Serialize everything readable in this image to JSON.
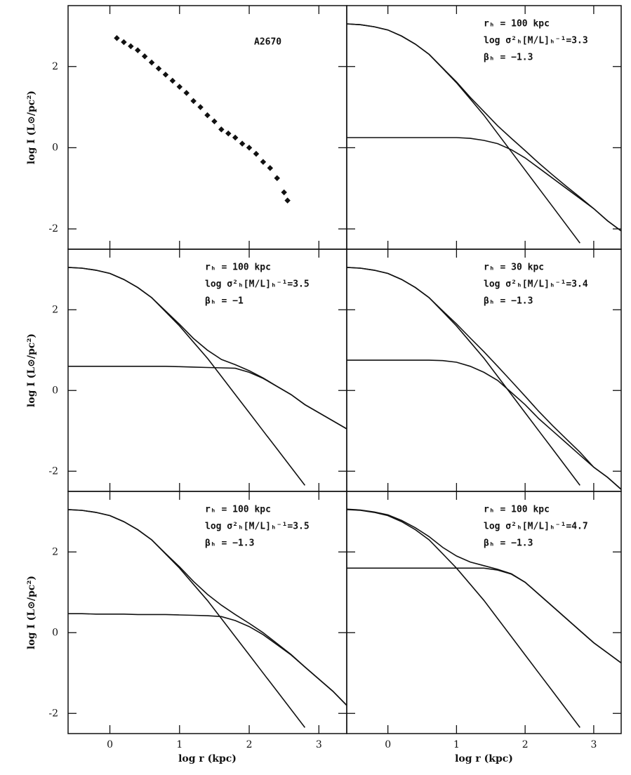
{
  "chart_data": [
    {
      "type": "scatter",
      "ylabel": "log I (L⊙/pc²)",
      "annotations": [
        "A2670"
      ],
      "x": [
        0.1,
        0.2,
        0.3,
        0.4,
        0.5,
        0.6,
        0.7,
        0.8,
        0.9,
        1.0,
        1.1,
        1.2,
        1.3,
        1.4,
        1.5,
        1.6,
        1.7,
        1.8,
        1.9,
        2.0,
        2.1,
        2.2,
        2.3,
        2.4,
        2.5,
        2.55
      ],
      "values": [
        2.7,
        2.6,
        2.5,
        2.4,
        2.25,
        2.1,
        1.95,
        1.8,
        1.65,
        1.5,
        1.35,
        1.15,
        1.0,
        0.8,
        0.65,
        0.45,
        0.35,
        0.25,
        0.1,
        0.0,
        -0.15,
        -0.35,
        -0.5,
        -0.75,
        -1.1,
        -1.3
      ],
      "color": "#111",
      "xlim": [
        -0.6,
        3.4
      ],
      "ylim": [
        -2.5,
        3.5
      ],
      "xticks": [
        0,
        1,
        2,
        3
      ],
      "yticks": [
        -2,
        0,
        2
      ]
    },
    {
      "type": "line",
      "annotations": [
        "rₕ = 100 kpc",
        "log σ²ₕ[M/L]ₕ⁻¹=3.3",
        "βₕ = −1.3"
      ],
      "x": [
        -0.6,
        -0.4,
        -0.2,
        0,
        0.2,
        0.4,
        0.6,
        0.8,
        1.0,
        1.2,
        1.4,
        1.6,
        1.8,
        2.0,
        2.2,
        2.4,
        2.6,
        2.8,
        3.0,
        3.2,
        3.4
      ],
      "series": [
        {
          "color": "#111",
          "values": [
            3.05,
            3.03,
            2.98,
            2.9,
            2.75,
            2.55,
            2.3,
            1.95,
            1.6,
            1.2,
            0.8,
            0.35,
            -0.1,
            -0.55,
            -1.0,
            -1.45,
            -1.9,
            -2.35,
            null,
            null,
            null
          ]
        },
        {
          "color": "#111",
          "values": [
            0.25,
            0.25,
            0.25,
            0.25,
            0.25,
            0.25,
            0.25,
            0.25,
            0.25,
            0.23,
            0.18,
            0.1,
            -0.05,
            -0.25,
            -0.5,
            -0.75,
            -1.0,
            -1.25,
            -1.5,
            -1.8,
            -2.05
          ]
        },
        {
          "color": "#111",
          "values": [
            3.05,
            3.03,
            2.98,
            2.9,
            2.75,
            2.55,
            2.3,
            1.96,
            1.62,
            1.24,
            0.89,
            0.54,
            0.23,
            -0.07,
            -0.38,
            -0.67,
            -0.95,
            -1.22,
            -1.5,
            -1.8,
            -2.05
          ]
        }
      ],
      "xlim": [
        -0.6,
        3.4
      ],
      "ylim": [
        -2.5,
        3.5
      ],
      "xticks": [
        0,
        1,
        2,
        3
      ],
      "yticks": [
        -2,
        0,
        2
      ]
    },
    {
      "type": "line",
      "ylabel": "log I (L⊙/pc²)",
      "annotations": [
        "rₕ = 100 kpc",
        "log σ²ₕ[M/L]ₕ⁻¹=3.5",
        "βₕ = −1"
      ],
      "x": [
        -0.6,
        -0.4,
        -0.2,
        0,
        0.2,
        0.4,
        0.6,
        0.8,
        1.0,
        1.2,
        1.4,
        1.6,
        1.8,
        2.0,
        2.2,
        2.4,
        2.6,
        2.8,
        3.0,
        3.2,
        3.4
      ],
      "series": [
        {
          "color": "#111",
          "values": [
            3.05,
            3.03,
            2.98,
            2.9,
            2.75,
            2.55,
            2.3,
            1.95,
            1.6,
            1.2,
            0.8,
            0.35,
            -0.1,
            -0.55,
            -1.0,
            -1.45,
            -1.9,
            -2.35,
            null,
            null,
            null
          ]
        },
        {
          "color": "#111",
          "values": [
            0.6,
            0.6,
            0.6,
            0.6,
            0.6,
            0.6,
            0.6,
            0.6,
            0.59,
            0.58,
            0.57,
            0.56,
            0.55,
            0.45,
            0.3,
            0.1,
            -0.1,
            -0.35,
            -0.55,
            -0.75,
            -0.95
          ]
        },
        {
          "color": "#111",
          "values": [
            3.05,
            3.03,
            2.98,
            2.9,
            2.75,
            2.55,
            2.3,
            1.97,
            1.64,
            1.29,
            1.0,
            0.77,
            0.64,
            0.49,
            0.31,
            0.1,
            -0.1,
            -0.35,
            -0.55,
            -0.75,
            -0.95
          ]
        }
      ],
      "xlim": [
        -0.6,
        3.4
      ],
      "ylim": [
        -2.5,
        3.5
      ],
      "xticks": [
        0,
        1,
        2,
        3
      ],
      "yticks": [
        -2,
        0,
        2
      ]
    },
    {
      "type": "line",
      "annotations": [
        "rₕ = 30 kpc",
        "log σ²ₕ[M/L]ₕ⁻¹=3.4",
        "βₕ = −1.3"
      ],
      "x": [
        -0.6,
        -0.4,
        -0.2,
        0,
        0.2,
        0.4,
        0.6,
        0.8,
        1.0,
        1.2,
        1.4,
        1.6,
        1.8,
        2.0,
        2.2,
        2.4,
        2.6,
        2.8,
        3.0,
        3.2,
        3.4
      ],
      "series": [
        {
          "color": "#111",
          "values": [
            3.05,
            3.03,
            2.98,
            2.9,
            2.75,
            2.55,
            2.3,
            1.95,
            1.6,
            1.2,
            0.8,
            0.35,
            -0.1,
            -0.55,
            -1.0,
            -1.45,
            -1.9,
            -2.35,
            null,
            null,
            null
          ]
        },
        {
          "color": "#111",
          "values": [
            0.75,
            0.75,
            0.75,
            0.75,
            0.75,
            0.75,
            0.75,
            0.74,
            0.7,
            0.6,
            0.45,
            0.25,
            -0.05,
            -0.35,
            -0.7,
            -1.0,
            -1.3,
            -1.6,
            -1.9,
            -2.15,
            -2.45
          ]
        },
        {
          "color": "#111",
          "values": [
            3.05,
            3.03,
            2.98,
            2.9,
            2.75,
            2.55,
            2.3,
            1.97,
            1.65,
            1.3,
            0.96,
            0.6,
            0.23,
            -0.14,
            -0.52,
            -0.87,
            -1.2,
            -1.53,
            -1.9,
            -2.15,
            -2.45
          ]
        }
      ],
      "xlim": [
        -0.6,
        3.4
      ],
      "ylim": [
        -2.5,
        3.5
      ],
      "xticks": [
        0,
        1,
        2,
        3
      ],
      "yticks": [
        -2,
        0,
        2
      ]
    },
    {
      "type": "line",
      "ylabel": "log I (L⊙/pc²)",
      "xlabel": "log r (kpc)",
      "annotations": [
        "rₕ = 100 kpc",
        "log σ²ₕ[M/L]ₕ⁻¹=3.5",
        "βₕ = −1.3"
      ],
      "x": [
        -0.6,
        -0.4,
        -0.2,
        0,
        0.2,
        0.4,
        0.6,
        0.8,
        1.0,
        1.2,
        1.4,
        1.6,
        1.8,
        2.0,
        2.2,
        2.4,
        2.6,
        2.8,
        3.0,
        3.2,
        3.4
      ],
      "series": [
        {
          "color": "#111",
          "values": [
            3.05,
            3.03,
            2.98,
            2.9,
            2.75,
            2.55,
            2.3,
            1.95,
            1.6,
            1.2,
            0.8,
            0.35,
            -0.1,
            -0.55,
            -1.0,
            -1.45,
            -1.9,
            -2.35,
            null,
            null,
            null
          ]
        },
        {
          "color": "#111",
          "values": [
            0.47,
            0.47,
            0.46,
            0.46,
            0.46,
            0.45,
            0.45,
            0.45,
            0.44,
            0.43,
            0.42,
            0.4,
            0.3,
            0.15,
            -0.05,
            -0.3,
            -0.55,
            -0.85,
            -1.15,
            -1.45,
            -1.8
          ]
        },
        {
          "color": "#111",
          "values": [
            3.05,
            3.03,
            2.98,
            2.9,
            2.75,
            2.55,
            2.3,
            1.96,
            1.63,
            1.27,
            0.95,
            0.68,
            0.45,
            0.23,
            0.0,
            -0.27,
            -0.54,
            -0.85,
            -1.15,
            -1.45,
            -1.8
          ]
        }
      ],
      "xlim": [
        -0.6,
        3.4
      ],
      "ylim": [
        -2.5,
        3.5
      ],
      "xticks": [
        0,
        1,
        2,
        3
      ],
      "yticks": [
        -2,
        0,
        2
      ]
    },
    {
      "type": "line",
      "xlabel": "log r (kpc)",
      "annotations": [
        "rₕ = 100 kpc",
        "log σ²ₕ[M/L]ₕ⁻¹=4.7",
        "βₕ = −1.3"
      ],
      "x": [
        -0.6,
        -0.4,
        -0.2,
        0,
        0.2,
        0.4,
        0.6,
        0.8,
        1.0,
        1.2,
        1.4,
        1.6,
        1.8,
        2.0,
        2.2,
        2.4,
        2.6,
        2.8,
        3.0,
        3.2,
        3.4
      ],
      "series": [
        {
          "color": "#111",
          "values": [
            3.05,
            3.03,
            2.98,
            2.9,
            2.75,
            2.55,
            2.3,
            1.95,
            1.6,
            1.2,
            0.8,
            0.35,
            -0.1,
            -0.55,
            -1.0,
            -1.45,
            -1.9,
            -2.35,
            null,
            null,
            null
          ]
        },
        {
          "color": "#111",
          "values": [
            1.6,
            1.6,
            1.6,
            1.6,
            1.6,
            1.6,
            1.6,
            1.6,
            1.6,
            1.6,
            1.6,
            1.55,
            1.45,
            1.25,
            0.95,
            0.65,
            0.35,
            0.05,
            -0.25,
            -0.5,
            -0.75
          ]
        },
        {
          "color": "#111",
          "values": [
            3.06,
            3.04,
            2.99,
            2.92,
            2.78,
            2.6,
            2.38,
            2.11,
            1.9,
            1.75,
            1.66,
            1.57,
            1.46,
            1.25,
            0.95,
            0.65,
            0.35,
            0.05,
            -0.25,
            -0.5,
            -0.75
          ]
        }
      ],
      "xlim": [
        -0.6,
        3.4
      ],
      "ylim": [
        -2.5,
        3.5
      ],
      "xticks": [
        0,
        1,
        2,
        3
      ],
      "yticks": [
        -2,
        0,
        2
      ]
    }
  ]
}
